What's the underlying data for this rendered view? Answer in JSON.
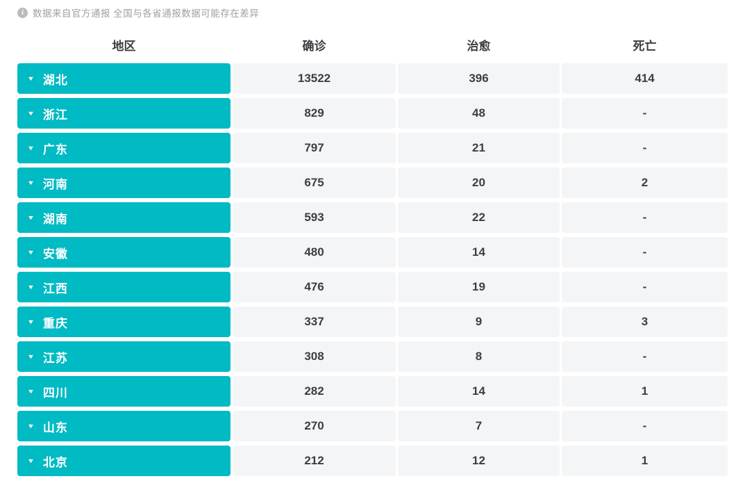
{
  "notice": {
    "text": "数据来自官方通报 全国与各省通报数据可能存在差异"
  },
  "icons": {
    "info": "i",
    "chevron_down": "▼"
  },
  "colors": {
    "accent_teal": "#00bac4",
    "cell_background": "#f4f5f7",
    "text_dark": "#3b3e42",
    "notice_gray": "#9da0a3"
  },
  "table": {
    "headers": [
      "地区",
      "确诊",
      "治愈",
      "死亡"
    ],
    "rows": [
      {
        "region": "湖北",
        "confirmed": "13522",
        "cured": "396",
        "deaths": "414"
      },
      {
        "region": "浙江",
        "confirmed": "829",
        "cured": "48",
        "deaths": "-"
      },
      {
        "region": "广东",
        "confirmed": "797",
        "cured": "21",
        "deaths": "-"
      },
      {
        "region": "河南",
        "confirmed": "675",
        "cured": "20",
        "deaths": "2"
      },
      {
        "region": "湖南",
        "confirmed": "593",
        "cured": "22",
        "deaths": "-"
      },
      {
        "region": "安徽",
        "confirmed": "480",
        "cured": "14",
        "deaths": "-"
      },
      {
        "region": "江西",
        "confirmed": "476",
        "cured": "19",
        "deaths": "-"
      },
      {
        "region": "重庆",
        "confirmed": "337",
        "cured": "9",
        "deaths": "3"
      },
      {
        "region": "江苏",
        "confirmed": "308",
        "cured": "8",
        "deaths": "-"
      },
      {
        "region": "四川",
        "confirmed": "282",
        "cured": "14",
        "deaths": "1"
      },
      {
        "region": "山东",
        "confirmed": "270",
        "cured": "7",
        "deaths": "-"
      },
      {
        "region": "北京",
        "confirmed": "212",
        "cured": "12",
        "deaths": "1"
      }
    ]
  }
}
